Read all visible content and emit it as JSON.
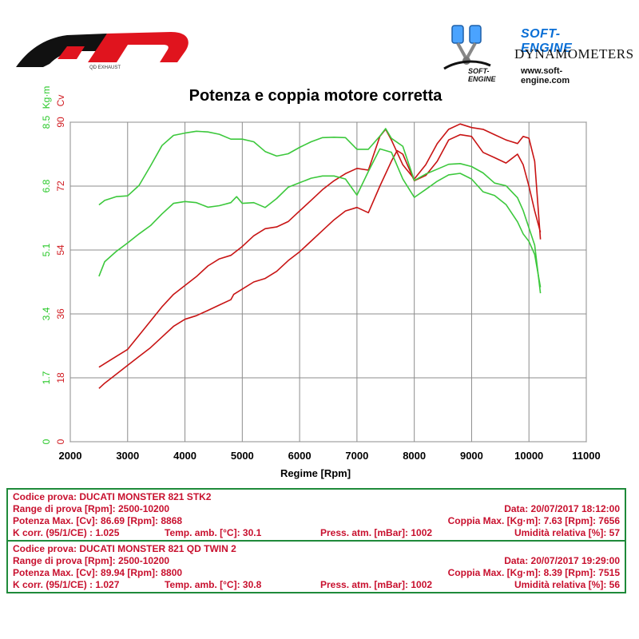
{
  "chart_data": {
    "type": "line",
    "title": "Potenza e coppia motore corretta",
    "xlabel": "Regime [Rpm]",
    "xlim": [
      2000,
      11000
    ],
    "x_ticks": [
      "2000",
      "3000",
      "4000",
      "5000",
      "6000",
      "7000",
      "8000",
      "9000",
      "10000",
      "11000"
    ],
    "y_left_power": {
      "label": "Cv",
      "color": "#d0191f",
      "ylim": [
        0,
        90
      ],
      "ticks": [
        "0",
        "18",
        "36",
        "54",
        "72",
        "90"
      ]
    },
    "y_left_torque": {
      "label": "Kg·m",
      "color": "#28c828",
      "ylim": [
        0,
        8.5
      ],
      "ticks": [
        "0",
        "1.7",
        "3.4",
        "5.1",
        "6.8",
        "8.5"
      ]
    },
    "series": [
      {
        "kind": "power",
        "run": "QD TWIN 2",
        "color": "#c81414",
        "x": [
          2500,
          2600,
          2800,
          3000,
          3200,
          3400,
          3600,
          3800,
          4000,
          4200,
          4400,
          4600,
          4800,
          5000,
          5200,
          5400,
          5600,
          5800,
          6000,
          6200,
          6400,
          6600,
          6800,
          7000,
          7200,
          7400,
          7500,
          7600,
          7800,
          8000,
          8200,
          8400,
          8600,
          8800,
          9000,
          9200,
          9400,
          9600,
          9800,
          9900,
          10000,
          10100,
          10200
        ],
        "y": [
          21,
          22,
          24,
          26,
          30,
          34,
          38,
          41.5,
          44,
          46.5,
          49.5,
          51.5,
          52.5,
          55,
          58,
          60,
          60.5,
          62,
          65,
          68,
          71,
          73.5,
          75.5,
          77,
          76.5,
          86,
          88,
          85,
          78,
          74,
          78,
          84,
          88,
          89.5,
          88.5,
          88,
          86.5,
          85,
          84,
          86,
          85.5,
          79,
          57
        ]
      },
      {
        "kind": "power",
        "run": "DUCATI MONSTER 821 STK2",
        "color": "#c81414",
        "x": [
          2500,
          2600,
          2800,
          3000,
          3200,
          3400,
          3600,
          3800,
          4000,
          4200,
          4400,
          4600,
          4800,
          4850,
          4900,
          5000,
          5200,
          5400,
          5600,
          5800,
          6000,
          6200,
          6400,
          6600,
          6800,
          7000,
          7200,
          7400,
          7600,
          7700,
          7800,
          8000,
          8200,
          8400,
          8600,
          8800,
          9000,
          9200,
          9400,
          9600,
          9800,
          9900,
          10000,
          10100,
          10200
        ],
        "y": [
          15,
          16.5,
          19,
          21.5,
          24,
          26.5,
          29.5,
          32.5,
          34.5,
          35.5,
          37,
          38.5,
          40,
          41.5,
          42,
          43,
          45,
          46,
          48,
          51,
          53.5,
          56.5,
          59.5,
          62.5,
          65,
          66,
          64.5,
          72,
          79,
          82,
          81,
          73.5,
          75,
          79,
          85,
          86.5,
          86,
          81.5,
          80,
          78.5,
          81,
          78,
          72,
          65,
          59
        ]
      },
      {
        "kind": "torque",
        "run": "QD TWIN 2",
        "color": "#3cc83c",
        "x": [
          2500,
          2600,
          2800,
          3000,
          3200,
          3400,
          3600,
          3800,
          4000,
          4200,
          4400,
          4600,
          4800,
          5000,
          5200,
          5400,
          5600,
          5800,
          6000,
          6200,
          6400,
          6600,
          6800,
          7000,
          7200,
          7400,
          7500,
          7600,
          7800,
          8000,
          8200,
          8400,
          8600,
          8800,
          9000,
          9200,
          9400,
          9600,
          9800,
          9900,
          10000,
          10100,
          10200
        ],
        "y": [
          6.3,
          6.42,
          6.52,
          6.54,
          6.82,
          7.34,
          7.88,
          8.15,
          8.21,
          8.26,
          8.24,
          8.18,
          8.05,
          8.05,
          7.98,
          7.72,
          7.6,
          7.66,
          7.83,
          7.98,
          8.09,
          8.1,
          8.09,
          7.78,
          7.78,
          8.13,
          8.33,
          8.07,
          7.86,
          6.95,
          7.12,
          7.25,
          7.38,
          7.4,
          7.32,
          7.15,
          6.88,
          6.81,
          6.49,
          6.15,
          5.69,
          5.23,
          3.95
        ]
      },
      {
        "kind": "torque",
        "run": "DUCATI MONSTER 821 STK2",
        "color": "#3cc83c",
        "x": [
          2500,
          2600,
          2800,
          3000,
          3200,
          3400,
          3600,
          3800,
          4000,
          4200,
          4400,
          4600,
          4800,
          4900,
          5000,
          5200,
          5400,
          5600,
          5800,
          6000,
          6200,
          6400,
          6600,
          6800,
          7000,
          7200,
          7400,
          7600,
          7800,
          8000,
          8200,
          8400,
          8600,
          8800,
          9000,
          9200,
          9400,
          9600,
          9800,
          9900,
          10000,
          10100,
          10200
        ],
        "y": [
          4.4,
          4.79,
          5.06,
          5.29,
          5.53,
          5.75,
          6.06,
          6.34,
          6.39,
          6.36,
          6.24,
          6.28,
          6.36,
          6.52,
          6.34,
          6.36,
          6.23,
          6.47,
          6.77,
          6.89,
          7.01,
          7.07,
          7.07,
          6.99,
          6.56,
          7.19,
          7.79,
          7.7,
          6.99,
          6.5,
          6.71,
          6.93,
          7.1,
          7.14,
          6.99,
          6.65,
          6.55,
          6.31,
          5.85,
          5.53,
          5.33,
          4.98,
          4.11
        ]
      }
    ],
    "grid": true
  },
  "info": [
    {
      "codice": "Codice prova: DUCATI MONSTER 821 STK2",
      "range": "Range di prova [Rpm]: 2500-10200",
      "data": "Data: 20/07/2017    18:12:00",
      "potenza": "Potenza Max. [Cv]: 86.69   [Rpm]: 8868",
      "coppia": "Coppia Max. [Kg·m]: 7.63   [Rpm]: 7656",
      "kcorr": "K corr. (95/1/CE) : 1.025",
      "temp": "Temp. amb. [°C]: 30.1",
      "press": "Press. atm. [mBar]: 1002",
      "umid": "Umidità relativa [%]: 57"
    },
    {
      "codice": "Codice prova: DUCATI MONSTER 821 QD TWIN 2",
      "range": "Range di prova [Rpm]: 2500-10200",
      "data": "Data: 20/07/2017    19:29:00",
      "potenza": "Potenza Max. [Cv]: 89.94   [Rpm]: 8800",
      "coppia": "Coppia Max. [Kg·m]: 8.39   [Rpm]: 7515",
      "kcorr": "K corr. (95/1/CE) : 1.027",
      "temp": "Temp. amb. [°C]: 30.8",
      "press": "Press. atm. [mBar]: 1002",
      "umid": "Umidità relativa [%]: 56"
    }
  ],
  "branding": {
    "qd_tagline": "QD EXHAUST",
    "soft_engine_name": "SOFT-ENGINE",
    "soft_engine_sub": "DYNAMOMETERS",
    "soft_engine_url": "www.soft-engine.com",
    "soft_engine_mark": "SOFT-ENGINE",
    "colors": {
      "qd_red": "#e0141e",
      "qd_black": "#111111",
      "soft_blue": "#0a6fd6"
    }
  }
}
